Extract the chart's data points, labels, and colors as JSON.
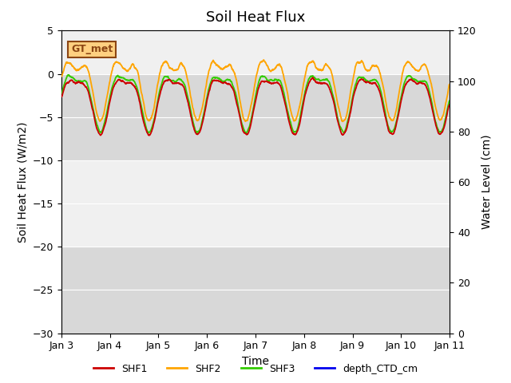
{
  "title": "Soil Heat Flux",
  "xlabel": "Time",
  "ylabel_left": "Soil Heat Flux (W/m2)",
  "ylabel_right": "Water Level (cm)",
  "ylim_left": [
    -30,
    5
  ],
  "ylim_right": [
    0,
    120
  ],
  "yticks_left": [
    -30,
    -25,
    -20,
    -15,
    -10,
    -5,
    0,
    5
  ],
  "yticks_right": [
    0,
    20,
    40,
    60,
    80,
    100,
    120
  ],
  "colors": {
    "SHF1": "#cc0000",
    "SHF2": "#ffa500",
    "SHF3": "#33cc00",
    "depth_CTD_cm": "#0000ee"
  },
  "legend_label": "GT_met",
  "legend_box_color": "#ffd080",
  "legend_box_edge": "#8b4513",
  "background_color": "#ffffff",
  "grid_band_color": "#d8d8d8",
  "title_fontsize": 13,
  "axis_label_fontsize": 10
}
